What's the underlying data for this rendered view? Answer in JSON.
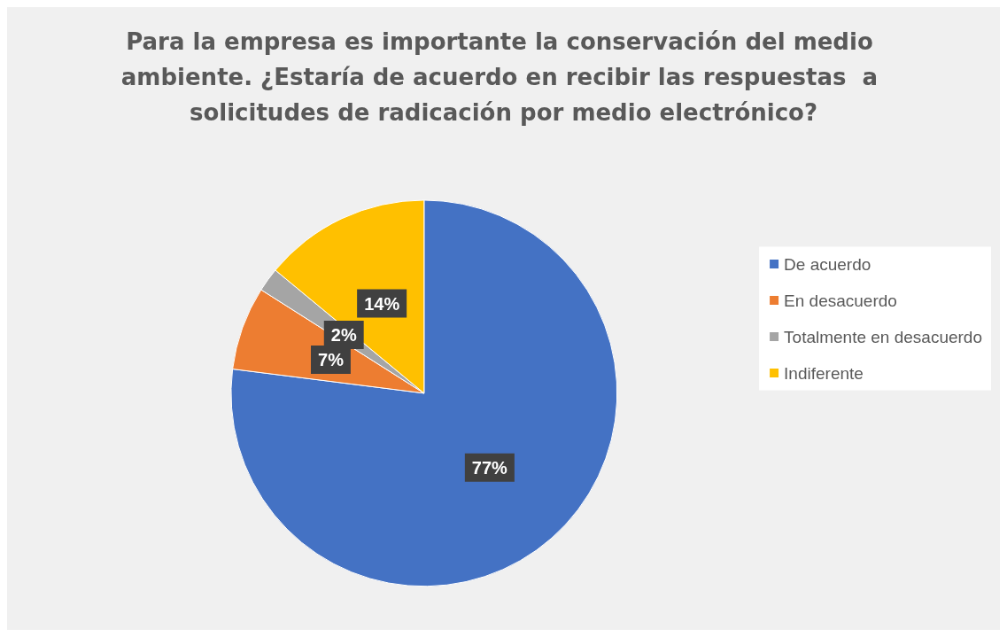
{
  "chart_data": {
    "type": "pie",
    "title": "Para la empresa es importante la conservación del medio ambiente. ¿Estaría de acuerdo en recibir las respuestas  a solicitudes de radicación por medio electrónico?",
    "categories": [
      "De acuerdo",
      "En desacuerdo",
      "Totalmente en desacuerdo",
      "Indiferente"
    ],
    "values": [
      77,
      7,
      2,
      14
    ],
    "colors": [
      "#4472c4",
      "#ed7d31",
      "#a5a5a5",
      "#ffc000"
    ],
    "value_labels": [
      "77%",
      "7%",
      "2%",
      "14%"
    ],
    "legend": "right"
  }
}
